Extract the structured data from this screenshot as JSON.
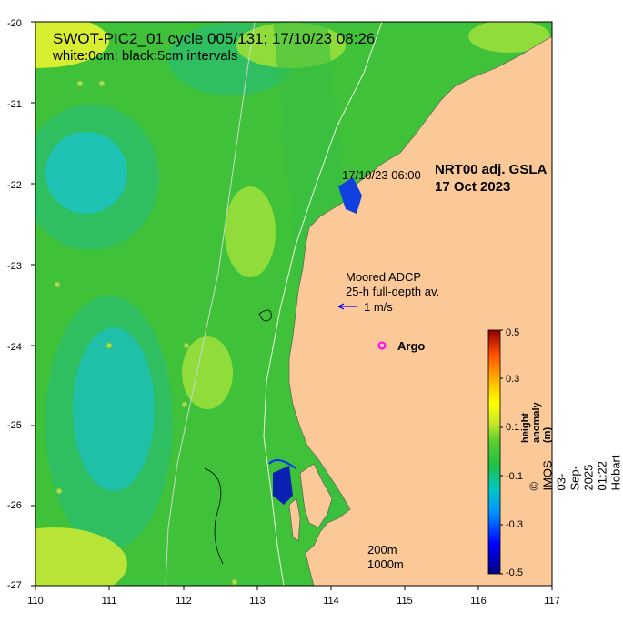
{
  "title": {
    "line1": "SWOT-PIC2_01 cycle 005/131; 17/10/23 08:26",
    "line2": "white:0cm; black:5cm intervals"
  },
  "product": {
    "name": "NRT00 adj. GSLA",
    "date": "17 Oct 2023",
    "timestamp": "17/10/23 06:00"
  },
  "adcp": {
    "line1": "Moored ADCP",
    "line2": "25-h full-depth av.",
    "scale_label": "1 m/s"
  },
  "argo": {
    "label": "Argo",
    "marker": "o",
    "color": "#ff00ff"
  },
  "contours": {
    "label_200": "200m",
    "label_1000": "1000m"
  },
  "axes": {
    "x_ticks": [
      "110",
      "111",
      "112",
      "113",
      "114",
      "115",
      "116",
      "117"
    ],
    "y_ticks": [
      "-20",
      "-21",
      "-22",
      "-23",
      "-24",
      "-25",
      "-26",
      "-27"
    ],
    "lon_range": [
      110,
      117
    ],
    "lat_range": [
      -27,
      -20
    ]
  },
  "colorbar": {
    "title": "height anomaly (m)",
    "ticks": [
      "0.5",
      "0.3",
      "0.1",
      "-0.1",
      "-0.3",
      "-0.5"
    ],
    "range": [
      -0.5,
      0.5
    ],
    "colors": [
      "#000080",
      "#0000ff",
      "#0088ff",
      "#00cccc",
      "#20c040",
      "#40c040",
      "#a0e030",
      "#ffff00",
      "#ffa500",
      "#ff4000",
      "#800000"
    ]
  },
  "land_color": "#fbc898",
  "credit": "© IMOS 03-Sep-2025 01:22 Hobart"
}
